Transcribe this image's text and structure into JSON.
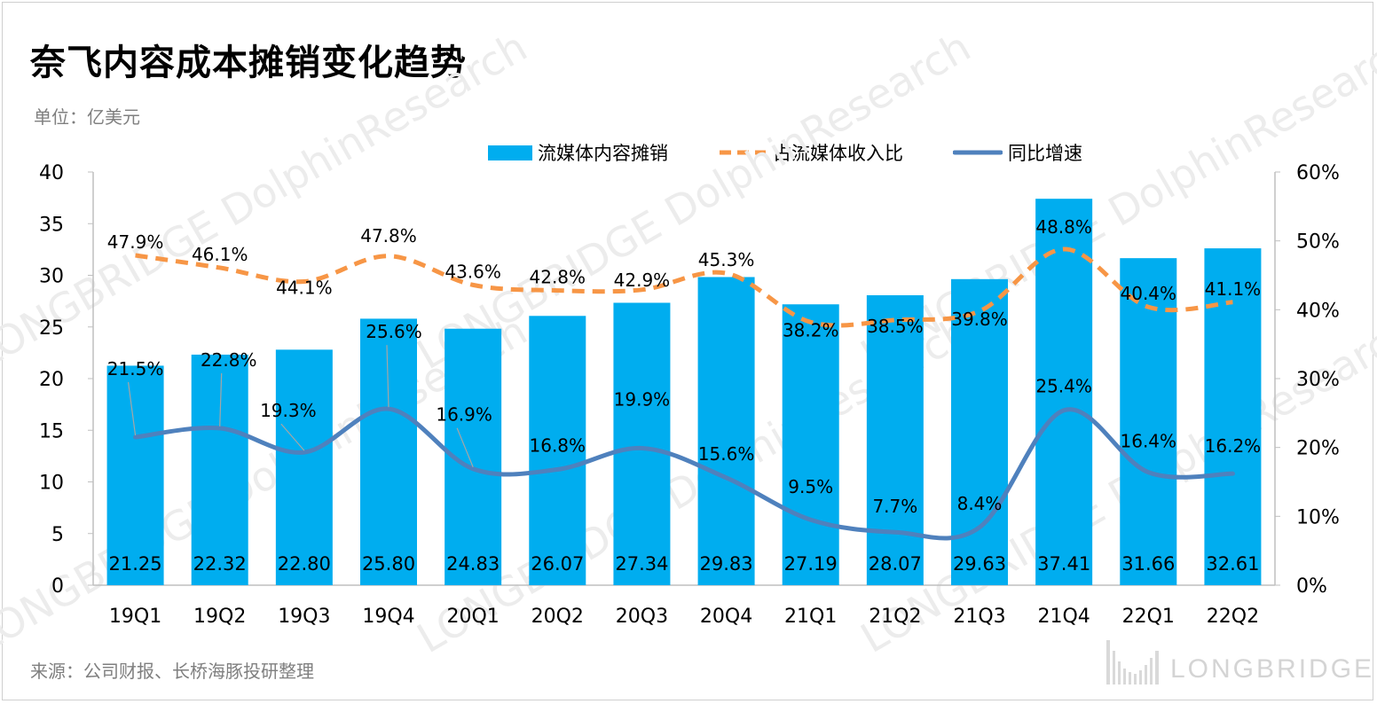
{
  "title": "奈飞内容成本摊销变化趋势",
  "unit": "单位：亿美元",
  "source": "来源：公司财报、长桥海豚投研整理",
  "watermark": {
    "text": "LONGBRIDGE DolphinResearch",
    "brand": "LONGBRIDGE"
  },
  "colors": {
    "bar": "#00adef",
    "ratio_line": "#f79646",
    "growth_line": "#4f81bd"
  },
  "chart_data": {
    "type": "bar",
    "categories": [
      "19Q1",
      "19Q2",
      "19Q3",
      "19Q4",
      "20Q1",
      "20Q2",
      "20Q3",
      "20Q4",
      "21Q1",
      "21Q2",
      "21Q3",
      "21Q4",
      "22Q1",
      "22Q2"
    ],
    "series": [
      {
        "name": "流媒体内容摊销",
        "type": "bar",
        "axis": "left",
        "values": [
          21.25,
          22.32,
          22.8,
          25.8,
          24.83,
          26.07,
          27.34,
          29.83,
          27.19,
          28.07,
          29.63,
          37.41,
          31.66,
          32.61
        ],
        "labels": [
          "21.25",
          "22.32",
          "22.80",
          "25.80",
          "24.83",
          "26.07",
          "27.34",
          "29.83",
          "27.19",
          "28.07",
          "29.63",
          "37.41",
          "31.66",
          "32.61"
        ]
      },
      {
        "name": "占流媒体收入比",
        "type": "line",
        "style": "dashed",
        "axis": "right",
        "values": [
          47.9,
          46.1,
          44.1,
          47.8,
          43.6,
          42.8,
          42.9,
          45.3,
          38.2,
          38.5,
          39.8,
          48.8,
          40.4,
          41.1
        ],
        "labels": [
          "47.9%",
          "46.1%",
          "44.1%",
          "47.8%",
          "43.6%",
          "42.8%",
          "42.9%",
          "45.3%",
          "38.2%",
          "38.5%",
          "39.8%",
          "48.8%",
          "40.4%",
          "41.1%"
        ]
      },
      {
        "name": "同比增速",
        "type": "line",
        "style": "solid-smooth",
        "axis": "right",
        "values": [
          21.5,
          22.8,
          19.3,
          25.6,
          16.9,
          16.8,
          19.9,
          15.6,
          9.5,
          7.7,
          8.4,
          25.4,
          16.4,
          16.2
        ],
        "labels": [
          "21.5%",
          "22.8%",
          "19.3%",
          "25.6%",
          "16.9%",
          "16.8%",
          "19.9%",
          "15.6%",
          "9.5%",
          "7.7%",
          "8.4%",
          "25.4%",
          "16.4%",
          "16.2%"
        ]
      }
    ],
    "y_left": {
      "min": 0,
      "max": 40,
      "ticks": [
        "0",
        "5",
        "10",
        "15",
        "20",
        "25",
        "30",
        "35",
        "40"
      ]
    },
    "y_right": {
      "min": 0,
      "max": 60,
      "ticks": [
        "0%",
        "10%",
        "20%",
        "30%",
        "40%",
        "50%",
        "60%"
      ]
    },
    "legend_position": "top",
    "grid": false
  }
}
